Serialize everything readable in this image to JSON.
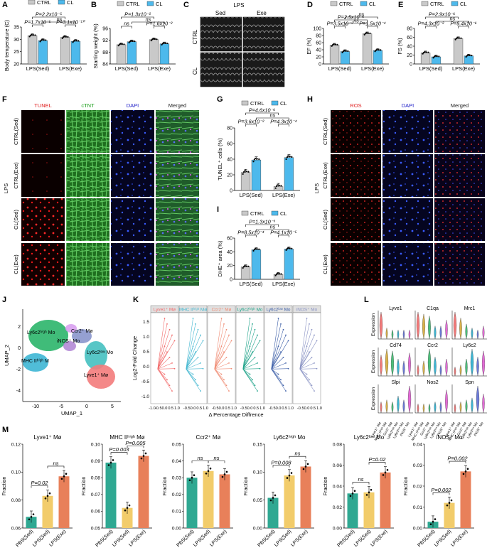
{
  "panels": {
    "A": {
      "letter": "A",
      "ylabel": "Body temperature (C)",
      "legend": [
        "CTRL",
        "CL"
      ],
      "categories": [
        "LPS(Sed)",
        "LPS(Exe)"
      ],
      "yticks": [
        "20",
        "25",
        "30",
        "35"
      ],
      "stats": [
        "P=2.2x10⁻⁵",
        "P=1.7x10⁻⁵",
        "ns",
        "P=3.1x10⁻¹⁰"
      ]
    },
    "B": {
      "letter": "B",
      "ylabel": "Starting weight (%)",
      "legend": [
        "CTRL",
        "CL"
      ],
      "categories": [
        "LPS(Sed)",
        "LPS(Exe)"
      ],
      "yticks": [
        "84",
        "88",
        "92",
        "96"
      ],
      "stats": [
        "P=1.3x10⁻²",
        "ns",
        "ns",
        "P=1.6x10⁻²"
      ]
    },
    "C": {
      "letter": "C",
      "title": "LPS",
      "columns": [
        "Sed",
        "Exe"
      ],
      "rows": [
        "CTRL",
        "CL"
      ]
    },
    "D": {
      "letter": "D",
      "ylabel": "EF (%)",
      "legend": [
        "CTRL",
        "CL"
      ],
      "categories": [
        "LPS(Sed)",
        "LPS(Exe)"
      ],
      "yticks": [
        "0",
        "20",
        "40",
        "60",
        "80",
        "100"
      ],
      "stats": [
        "ns",
        "P=2.5x10⁻⁶",
        "P=3.5x10⁻²",
        "ns",
        "P=1.5x10⁻⁴"
      ]
    },
    "E": {
      "letter": "E",
      "ylabel": "FS (%)",
      "legend": [
        "CTRL",
        "CL"
      ],
      "categories": [
        "LPS(Sed)",
        "LPS(Exe)"
      ],
      "yticks": [
        "0",
        "20",
        "40",
        "60",
        "80"
      ],
      "stats": [
        "P=2.9x10⁻⁶",
        "ns",
        "P=4.3x10⁻²",
        "P=9.4x10⁻⁶"
      ]
    },
    "F": {
      "letter": "F",
      "columns": [
        "TUNEL",
        "cTNT",
        "DAPI",
        "Merged"
      ],
      "rows": [
        "CTRL(Sed)",
        "CTRL(Exe)",
        "CL(Sed)",
        "CL(Exe)"
      ],
      "side_label": "LPS"
    },
    "G": {
      "letter": "G",
      "ylabel": "TUNEL⁺ cells (%)",
      "legend": [
        "CTRL",
        "CL"
      ],
      "categories": [
        "LPS(Sed)",
        "LPS(Exe)"
      ],
      "yticks": [
        "0",
        "20",
        "40",
        "60",
        "80"
      ],
      "stats": [
        "P=4.6x10⁻⁶",
        "ns",
        "P=3.6x10⁻²",
        "P=4.3x10⁻⁴"
      ]
    },
    "H": {
      "letter": "H",
      "columns": [
        "ROS",
        "DAPI",
        "Merged"
      ],
      "rows": [
        "CTRL(Sed)",
        "CTRL(Exe)",
        "CL(Sed)",
        "CL(Exe)"
      ],
      "side_label": "LPS"
    },
    "I": {
      "letter": "I",
      "ylabel": "DHE⁺ area (%)",
      "legend": [
        "CTRL",
        "CL"
      ],
      "categories": [
        "LPS(Sed)",
        "LPS(Exe)"
      ],
      "yticks": [
        "0",
        "20",
        "40",
        "60"
      ],
      "stats": [
        "P=1.3x10⁻³",
        "ns",
        "P=8.5x10⁻⁴",
        "P=4.1x10⁻⁵"
      ]
    },
    "J": {
      "letter": "J",
      "xlabel": "UMAP_1",
      "ylabel": "UMAP_2",
      "xticks": [
        "-10",
        "-5",
        "0",
        "5"
      ],
      "yticks": [
        "-4",
        "-2",
        "0",
        "2"
      ],
      "clusters": [
        "Ly6c2ʰⁱᵍʰ Mo",
        "Ccr2⁺ Mø",
        "iNOS⁺ Mo",
        "MHC IIʰⁱᵍʰ M",
        "Ly6c2ˡᵒʷ Mo",
        "Lyve1⁺ Mø"
      ]
    },
    "K": {
      "letter": "K",
      "ylabel": "Log2-Fold Change",
      "xlabel": "Δ Percentage Diffrence",
      "yticks": [
        "-1.0",
        "-0.5",
        "0.0",
        "0.5",
        "1.0",
        "1.5"
      ],
      "xtick_labels": [
        "-1.0",
        "-0.5",
        "0.0",
        "0.5",
        "1.0"
      ],
      "facets": [
        {
          "title": "Lyve1⁺ Mø",
          "color": "#f26b6b"
        },
        {
          "title": "MHC IIʰⁱᵍʰ Mø",
          "color": "#45b8d1"
        },
        {
          "title": "Ccr2⁺ Mø",
          "color": "#f08c74"
        },
        {
          "title": "Ly6c2ʰⁱᵍʰ Mo",
          "color": "#1fa38a"
        },
        {
          "title": "Ly6c2ˡᵒʷ Mo",
          "color": "#3d5fa8"
        },
        {
          "title": "iNOS⁺ Mo",
          "color": "#8a93c4"
        }
      ]
    },
    "L": {
      "letter": "L",
      "ylabel": "Expression",
      "genes": [
        "Lyve1",
        "C1qa",
        "Mrc1",
        "Cd74",
        "Ccr2",
        "Ly6c2",
        "Slpi",
        "Nos2",
        "Spn"
      ],
      "cell_types": [
        "Lyve1⁺ Mø",
        "MHC IIʰⁱᵍʰ Mø",
        "Ccr2⁺ Mø",
        "Ly6c2ʰⁱᵍʰ Mo",
        "Ly6c2ˡᵒʷ Mo",
        "iNOS⁺ Mo"
      ]
    },
    "M": {
      "letter": "M",
      "ylabel": "Fraction",
      "categories": [
        "PBS(Sed)",
        "LPS(Sed)",
        "LPS(Exe)"
      ],
      "colors": [
        "#2fa892",
        "#f2cc6b",
        "#e8805a"
      ]
    }
  },
  "colors": {
    "ctrl": "#c9c9c9",
    "cl": "#4db9ec"
  },
  "chart_data": [
    {
      "panel": "A",
      "type": "bar",
      "categories": [
        "LPS(Sed)",
        "LPS(Exe)"
      ],
      "ylabel": "Body temperature (C)",
      "ylim": [
        20,
        35
      ],
      "series": [
        {
          "name": "CTRL",
          "values": [
            31.5,
            30.8
          ]
        },
        {
          "name": "CL",
          "values": [
            29.5,
            29.2
          ]
        }
      ]
    },
    {
      "panel": "B",
      "type": "bar",
      "categories": [
        "LPS(Sed)",
        "LPS(Exe)"
      ],
      "ylabel": "Starting weight (%)",
      "ylim": [
        84,
        96
      ],
      "series": [
        {
          "name": "CTRL",
          "values": [
            90.5,
            92.2
          ]
        },
        {
          "name": "CL",
          "values": [
            91.5,
            90.8
          ]
        }
      ]
    },
    {
      "panel": "D",
      "type": "bar",
      "categories": [
        "LPS(Sed)",
        "LPS(Exe)"
      ],
      "ylabel": "EF (%)",
      "ylim": [
        0,
        100
      ],
      "series": [
        {
          "name": "CTRL",
          "values": [
            53,
            85
          ]
        },
        {
          "name": "CL",
          "values": [
            35,
            38
          ]
        }
      ]
    },
    {
      "panel": "E",
      "type": "bar",
      "categories": [
        "LPS(Sed)",
        "LPS(Exe)"
      ],
      "ylabel": "FS (%)",
      "ylim": [
        0,
        80
      ],
      "series": [
        {
          "name": "CTRL",
          "values": [
            25,
            57
          ]
        },
        {
          "name": "CL",
          "values": [
            16,
            18
          ]
        }
      ]
    },
    {
      "panel": "G",
      "type": "bar",
      "categories": [
        "LPS(Sed)",
        "LPS(Exe)"
      ],
      "ylabel": "TUNEL⁺ cells (%)",
      "ylim": [
        0,
        80
      ],
      "series": [
        {
          "name": "CTRL",
          "values": [
            23,
            5
          ]
        },
        {
          "name": "CL",
          "values": [
            39,
            42
          ]
        }
      ]
    },
    {
      "panel": "I",
      "type": "bar",
      "categories": [
        "LPS(Sed)",
        "LPS(Exe)"
      ],
      "ylabel": "DHE⁺ area (%)",
      "ylim": [
        0,
        60
      ],
      "series": [
        {
          "name": "CTRL",
          "values": [
            18,
            7
          ]
        },
        {
          "name": "CL",
          "values": [
            43,
            44
          ]
        }
      ]
    },
    {
      "panel": "M1",
      "type": "bar",
      "title": "Lyve1⁺ Mø",
      "categories": [
        "PBS(Sed)",
        "LPS(Sed)",
        "LPS(Exe)"
      ],
      "values": [
        0.068,
        0.083,
        0.097
      ],
      "ylim": [
        0.06,
        0.12
      ],
      "yticks": [
        "0.06",
        "0.08",
        "0.10",
        "0.12"
      ],
      "stats": [
        "P=0.02",
        "ns"
      ]
    },
    {
      "panel": "M2",
      "type": "bar",
      "title": "MHC IIʰⁱᵍʰ Mø",
      "categories": [
        "PBS(Sed)",
        "LPS(Sed)",
        "LPS(Exe)"
      ],
      "values": [
        0.089,
        0.062,
        0.093
      ],
      "ylim": [
        0.05,
        0.1
      ],
      "yticks": [
        "0.05",
        "0.06",
        "0.07",
        "0.08",
        "0.09",
        "0.10"
      ],
      "stats": [
        "P=0.003",
        "P=0.005"
      ]
    },
    {
      "panel": "M3",
      "type": "bar",
      "title": "Ccr2⁺ Mø",
      "categories": [
        "PBS(Sed)",
        "LPS(Sed)",
        "LPS(Exe)"
      ],
      "values": [
        0.03,
        0.034,
        0.032
      ],
      "ylim": [
        0,
        0.05
      ],
      "yticks": [
        "0.00",
        "0.01",
        "0.02",
        "0.03",
        "0.04",
        "0.05"
      ],
      "stats": [
        "ns",
        "ns"
      ]
    },
    {
      "panel": "M4",
      "type": "bar",
      "title": "Ly6c2ʰⁱᵍʰ Mo",
      "categories": [
        "PBS(Sed)",
        "LPS(Sed)",
        "LPS(Exe)"
      ],
      "values": [
        0.054,
        0.094,
        0.11
      ],
      "ylim": [
        0,
        0.15
      ],
      "yticks": [
        "0.00",
        "0.05",
        "0.10",
        "0.15"
      ],
      "stats": [
        "P=0.008",
        "ns"
      ]
    },
    {
      "panel": "M5",
      "type": "bar",
      "title": "Ly6c2ˡᵒʷ Mo",
      "categories": [
        "PBS(Sed)",
        "LPS(Sed)",
        "LPS(Exe)"
      ],
      "values": [
        0.033,
        0.034,
        0.053
      ],
      "ylim": [
        0,
        0.08
      ],
      "yticks": [
        "0.00",
        "0.02",
        "0.04",
        "0.06",
        "0.08"
      ],
      "stats": [
        "ns",
        "P=0.02"
      ]
    },
    {
      "panel": "M6",
      "type": "bar",
      "title": "iNOS⁺ Mo",
      "categories": [
        "PBS(Sed)",
        "LPS(Sed)",
        "LPS(Exe)"
      ],
      "values": [
        0.003,
        0.012,
        0.027
      ],
      "ylim": [
        0,
        0.04
      ],
      "yticks": [
        "0.00",
        "0.01",
        "0.02",
        "0.03",
        "0.04"
      ],
      "stats": [
        "P=0.002",
        "P=0.002"
      ]
    }
  ]
}
